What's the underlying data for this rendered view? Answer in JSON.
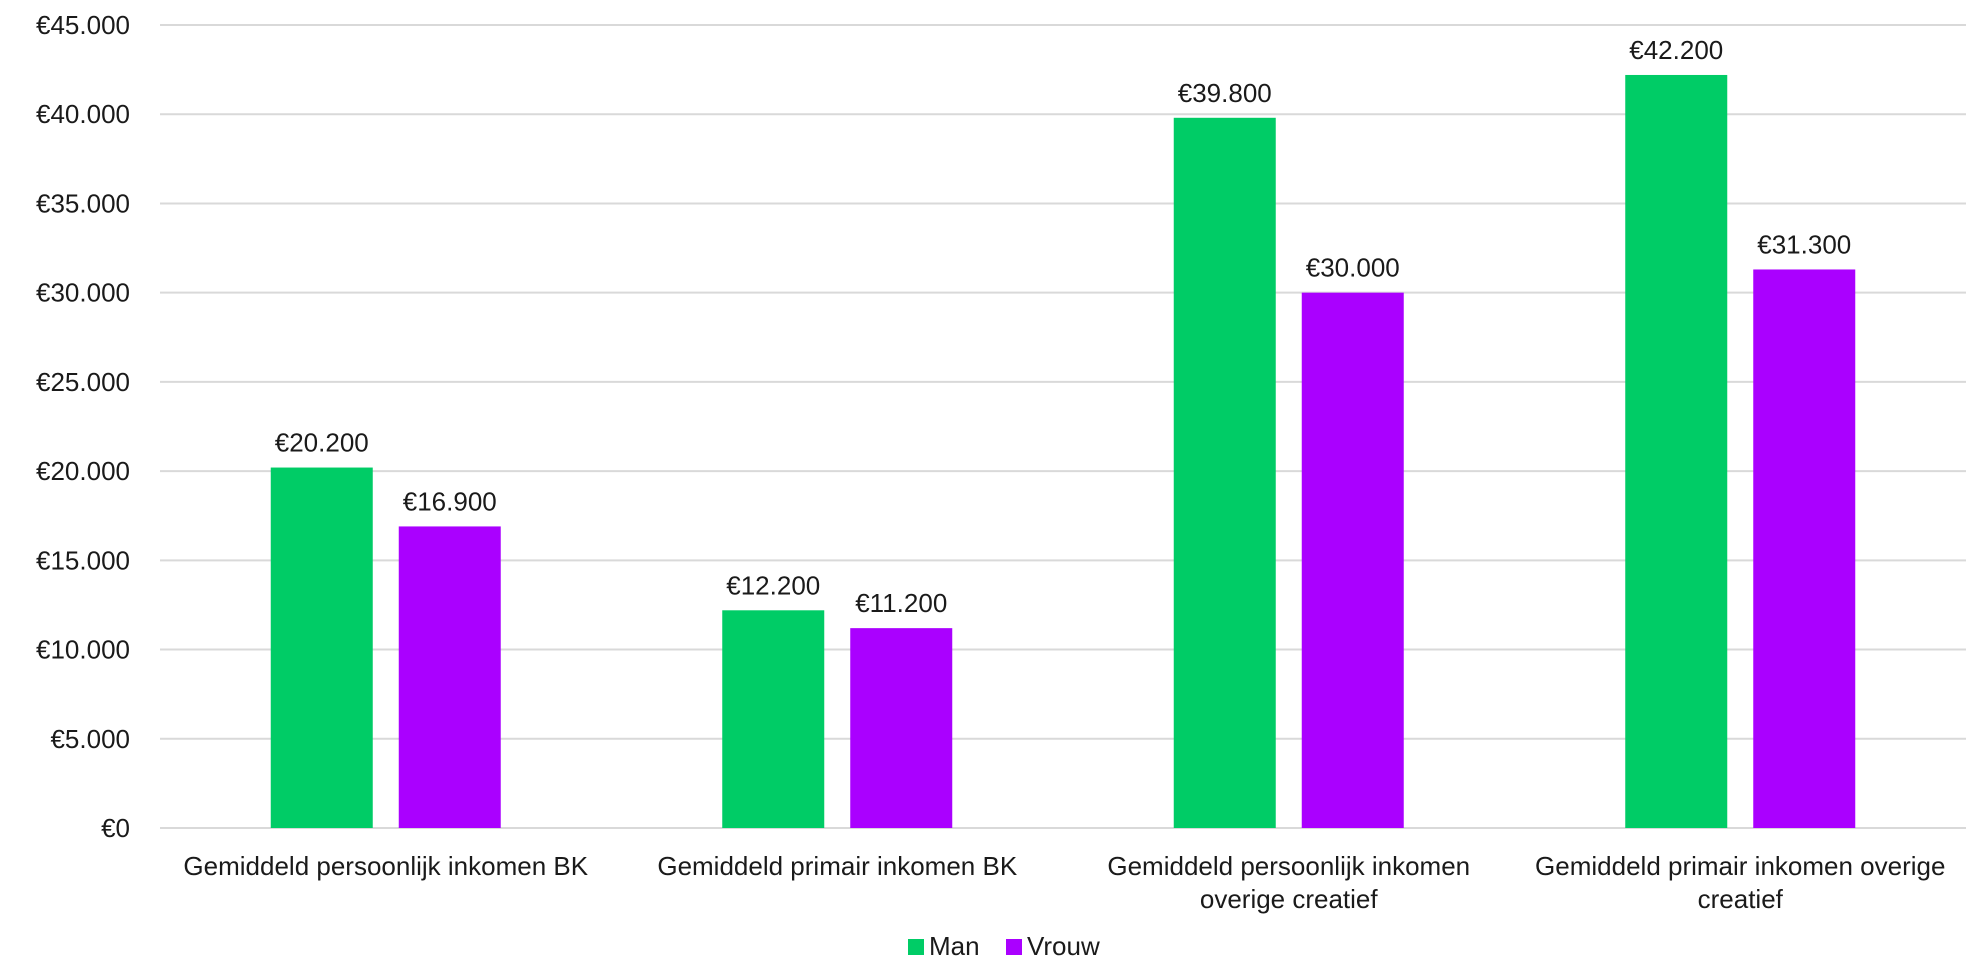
{
  "chart_data": {
    "type": "bar",
    "title": "",
    "xlabel": "",
    "ylabel": "",
    "categories": [
      [
        "Gemiddeld persoonlijk inkomen BK"
      ],
      [
        "Gemiddeld primair inkomen BK"
      ],
      [
        "Gemiddeld persoonlijk inkomen",
        "overige creatief"
      ],
      [
        "Gemiddeld primair inkomen overige",
        "creatief"
      ]
    ],
    "series": [
      {
        "name": "Man",
        "color": "#00cc66",
        "values": [
          20200,
          12200,
          39800,
          42200
        ],
        "labels": [
          "€20.200",
          "€12.200",
          "€39.800",
          "€42.200"
        ]
      },
      {
        "name": "Vrouw",
        "color": "#aa00ff",
        "values": [
          16900,
          11200,
          30000,
          31300
        ],
        "labels": [
          "€16.900",
          "€11.200",
          "€30.000",
          "€31.300"
        ]
      }
    ],
    "ylim": [
      0,
      45000
    ],
    "yticks": [
      0,
      5000,
      10000,
      15000,
      20000,
      25000,
      30000,
      35000,
      40000,
      45000
    ],
    "ytick_labels": [
      "€0",
      "€5.000",
      "€10.000",
      "€15.000",
      "€20.000",
      "€25.000",
      "€30.000",
      "€35.000",
      "€40.000",
      "€45.000"
    ],
    "grid": true,
    "legend_position": "bottom"
  }
}
